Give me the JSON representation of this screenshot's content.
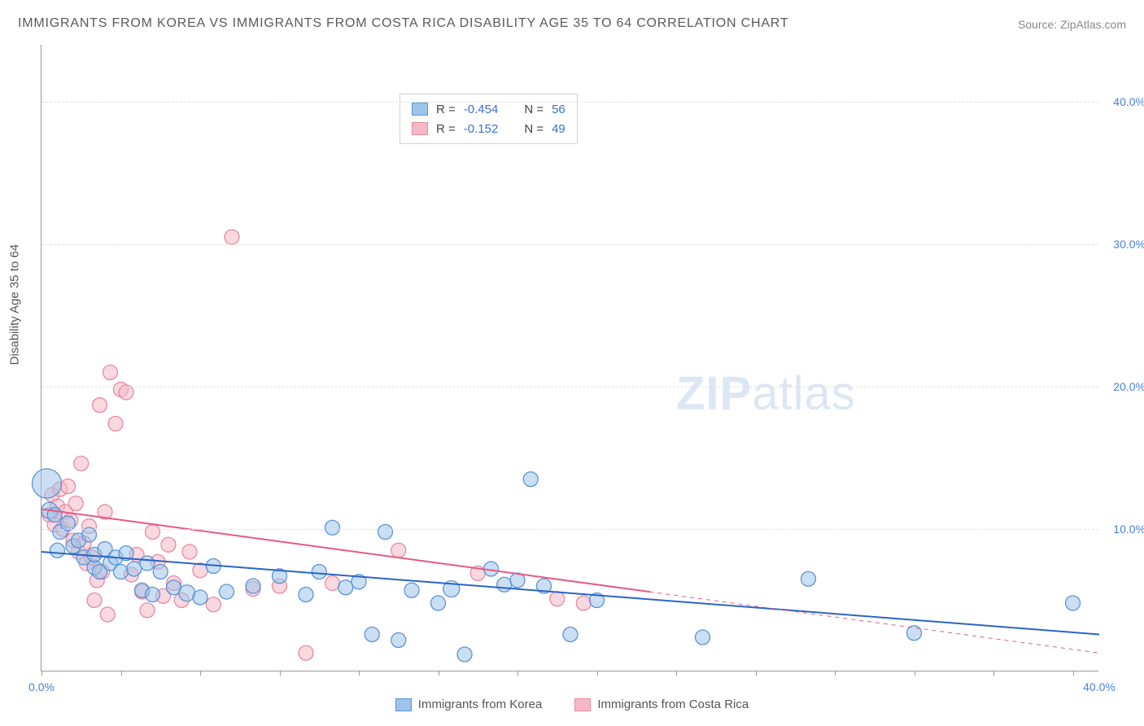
{
  "title": "IMMIGRANTS FROM KOREA VS IMMIGRANTS FROM COSTA RICA DISABILITY AGE 35 TO 64 CORRELATION CHART",
  "source": "Source: ZipAtlas.com",
  "watermark_zip": "ZIP",
  "watermark_atlas": "atlas",
  "y_axis_label": "Disability Age 35 to 64",
  "chart": {
    "type": "scatter",
    "xlim": [
      0,
      40
    ],
    "ylim": [
      0,
      44
    ],
    "x_ticks": [
      0,
      3,
      6,
      9,
      12,
      15,
      18,
      21,
      24,
      27,
      30,
      33,
      36,
      39
    ],
    "x_tick_labels": {
      "0": "0.0%",
      "40": "40.0%"
    },
    "y_ticks": [
      10,
      20,
      30,
      40
    ],
    "y_tick_labels": [
      "10.0%",
      "20.0%",
      "30.0%",
      "40.0%"
    ],
    "grid_color": "#e0e0e0",
    "background_color": "#ffffff",
    "axis_color": "#999999",
    "label_color": "#4a7fd8",
    "series": [
      {
        "name": "Immigrants from Korea",
        "color_fill": "#9fc4ea",
        "color_stroke": "#5b94d6",
        "fill_opacity": 0.55,
        "marker_radius": 9,
        "R": "-0.454",
        "N": "56",
        "trend": {
          "x1": 0,
          "y1": 8.4,
          "x2": 40,
          "y2": 2.6,
          "dash_from_x": null,
          "color": "#2a64c7",
          "width": 2
        },
        "points": [
          [
            0.2,
            13.2,
            18
          ],
          [
            0.3,
            11.3,
            10
          ],
          [
            0.5,
            11.0,
            9
          ],
          [
            0.7,
            9.8,
            9
          ],
          [
            0.6,
            8.5,
            9
          ],
          [
            1.0,
            10.4,
            9
          ],
          [
            1.2,
            8.8,
            9
          ],
          [
            1.4,
            9.2,
            9
          ],
          [
            1.6,
            8.0,
            9
          ],
          [
            1.8,
            9.6,
            9
          ],
          [
            2.0,
            7.3,
            9
          ],
          [
            2.0,
            8.2,
            9
          ],
          [
            2.2,
            7.0,
            9
          ],
          [
            2.4,
            8.6,
            9
          ],
          [
            2.6,
            7.6,
            9
          ],
          [
            2.8,
            8.0,
            9
          ],
          [
            3.0,
            7.0,
            9
          ],
          [
            3.2,
            8.3,
            9
          ],
          [
            3.5,
            7.2,
            9
          ],
          [
            3.8,
            5.7,
            9
          ],
          [
            4.0,
            7.6,
            9
          ],
          [
            4.2,
            5.4,
            9
          ],
          [
            4.5,
            7.0,
            9
          ],
          [
            5.0,
            5.9,
            9
          ],
          [
            5.5,
            5.5,
            10
          ],
          [
            6.0,
            5.2,
            9
          ],
          [
            6.5,
            7.4,
            9
          ],
          [
            7.0,
            5.6,
            9
          ],
          [
            8.0,
            6.0,
            9
          ],
          [
            9.0,
            6.7,
            9
          ],
          [
            10.0,
            5.4,
            9
          ],
          [
            10.5,
            7.0,
            9
          ],
          [
            11.0,
            10.1,
            9
          ],
          [
            11.5,
            5.9,
            9
          ],
          [
            12.0,
            6.3,
            9
          ],
          [
            12.5,
            2.6,
            9
          ],
          [
            13.0,
            9.8,
            9
          ],
          [
            13.5,
            2.2,
            9
          ],
          [
            14.0,
            5.7,
            9
          ],
          [
            15.0,
            4.8,
            9
          ],
          [
            15.5,
            5.8,
            10
          ],
          [
            16.0,
            1.2,
            9
          ],
          [
            17.0,
            7.2,
            9
          ],
          [
            17.5,
            6.1,
            9
          ],
          [
            18.0,
            6.4,
            9
          ],
          [
            18.5,
            13.5,
            9
          ],
          [
            19.0,
            6.0,
            9
          ],
          [
            20.0,
            2.6,
            9
          ],
          [
            21.0,
            5.0,
            9
          ],
          [
            25.0,
            2.4,
            9
          ],
          [
            29.0,
            6.5,
            9
          ],
          [
            33.0,
            2.7,
            9
          ],
          [
            39.0,
            4.8,
            9
          ]
        ]
      },
      {
        "name": "Immigrants from Costa Rica",
        "color_fill": "#f4b8c6",
        "color_stroke": "#e88aa3",
        "fill_opacity": 0.55,
        "marker_radius": 9,
        "R": "-0.152",
        "N": "49",
        "trend": {
          "x1": 0,
          "y1": 11.4,
          "x2": 40,
          "y2": 1.3,
          "dash_from_x": 23,
          "color": "#e35a85",
          "width": 2
        },
        "points": [
          [
            0.3,
            11.0,
            9
          ],
          [
            0.4,
            12.4,
            9
          ],
          [
            0.5,
            10.3,
            9
          ],
          [
            0.6,
            11.6,
            9
          ],
          [
            0.7,
            12.8,
            9
          ],
          [
            0.8,
            10.0,
            9
          ],
          [
            0.9,
            11.2,
            9
          ],
          [
            1.0,
            13.0,
            9
          ],
          [
            1.1,
            10.6,
            9
          ],
          [
            1.2,
            9.2,
            9
          ],
          [
            1.3,
            11.8,
            9
          ],
          [
            1.4,
            8.4,
            9
          ],
          [
            1.5,
            14.6,
            9
          ],
          [
            1.6,
            9.0,
            9
          ],
          [
            1.7,
            7.6,
            9
          ],
          [
            1.8,
            10.2,
            9
          ],
          [
            1.9,
            8.0,
            9
          ],
          [
            2.0,
            5.0,
            9
          ],
          [
            2.1,
            6.4,
            9
          ],
          [
            2.2,
            18.7,
            9
          ],
          [
            2.3,
            7.0,
            9
          ],
          [
            2.4,
            11.2,
            9
          ],
          [
            2.5,
            4.0,
            9
          ],
          [
            2.6,
            21.0,
            9
          ],
          [
            2.8,
            17.4,
            9
          ],
          [
            3.0,
            19.8,
            9
          ],
          [
            3.2,
            19.6,
            9
          ],
          [
            3.4,
            6.8,
            9
          ],
          [
            3.6,
            8.2,
            9
          ],
          [
            3.8,
            5.6,
            9
          ],
          [
            4.0,
            4.3,
            9
          ],
          [
            4.2,
            9.8,
            9
          ],
          [
            4.4,
            7.7,
            9
          ],
          [
            4.6,
            5.3,
            9
          ],
          [
            4.8,
            8.9,
            9
          ],
          [
            5.0,
            6.2,
            9
          ],
          [
            5.3,
            5.0,
            9
          ],
          [
            5.6,
            8.4,
            9
          ],
          [
            6.0,
            7.1,
            9
          ],
          [
            6.5,
            4.7,
            9
          ],
          [
            7.2,
            30.5,
            9
          ],
          [
            8.0,
            5.8,
            9
          ],
          [
            9.0,
            6.0,
            9
          ],
          [
            10.0,
            1.3,
            9
          ],
          [
            11.0,
            6.2,
            9
          ],
          [
            13.5,
            8.5,
            9
          ],
          [
            16.5,
            6.9,
            9
          ],
          [
            19.5,
            5.1,
            9
          ],
          [
            20.5,
            4.8,
            9
          ]
        ]
      }
    ]
  },
  "legend_labels": {
    "R": "R =",
    "N": "N ="
  },
  "bottom_legend": [
    {
      "label": "Immigrants from Korea",
      "fill": "#9fc4ea",
      "stroke": "#5b94d6"
    },
    {
      "label": "Immigrants from Costa Rica",
      "fill": "#f4b8c6",
      "stroke": "#e88aa3"
    }
  ]
}
